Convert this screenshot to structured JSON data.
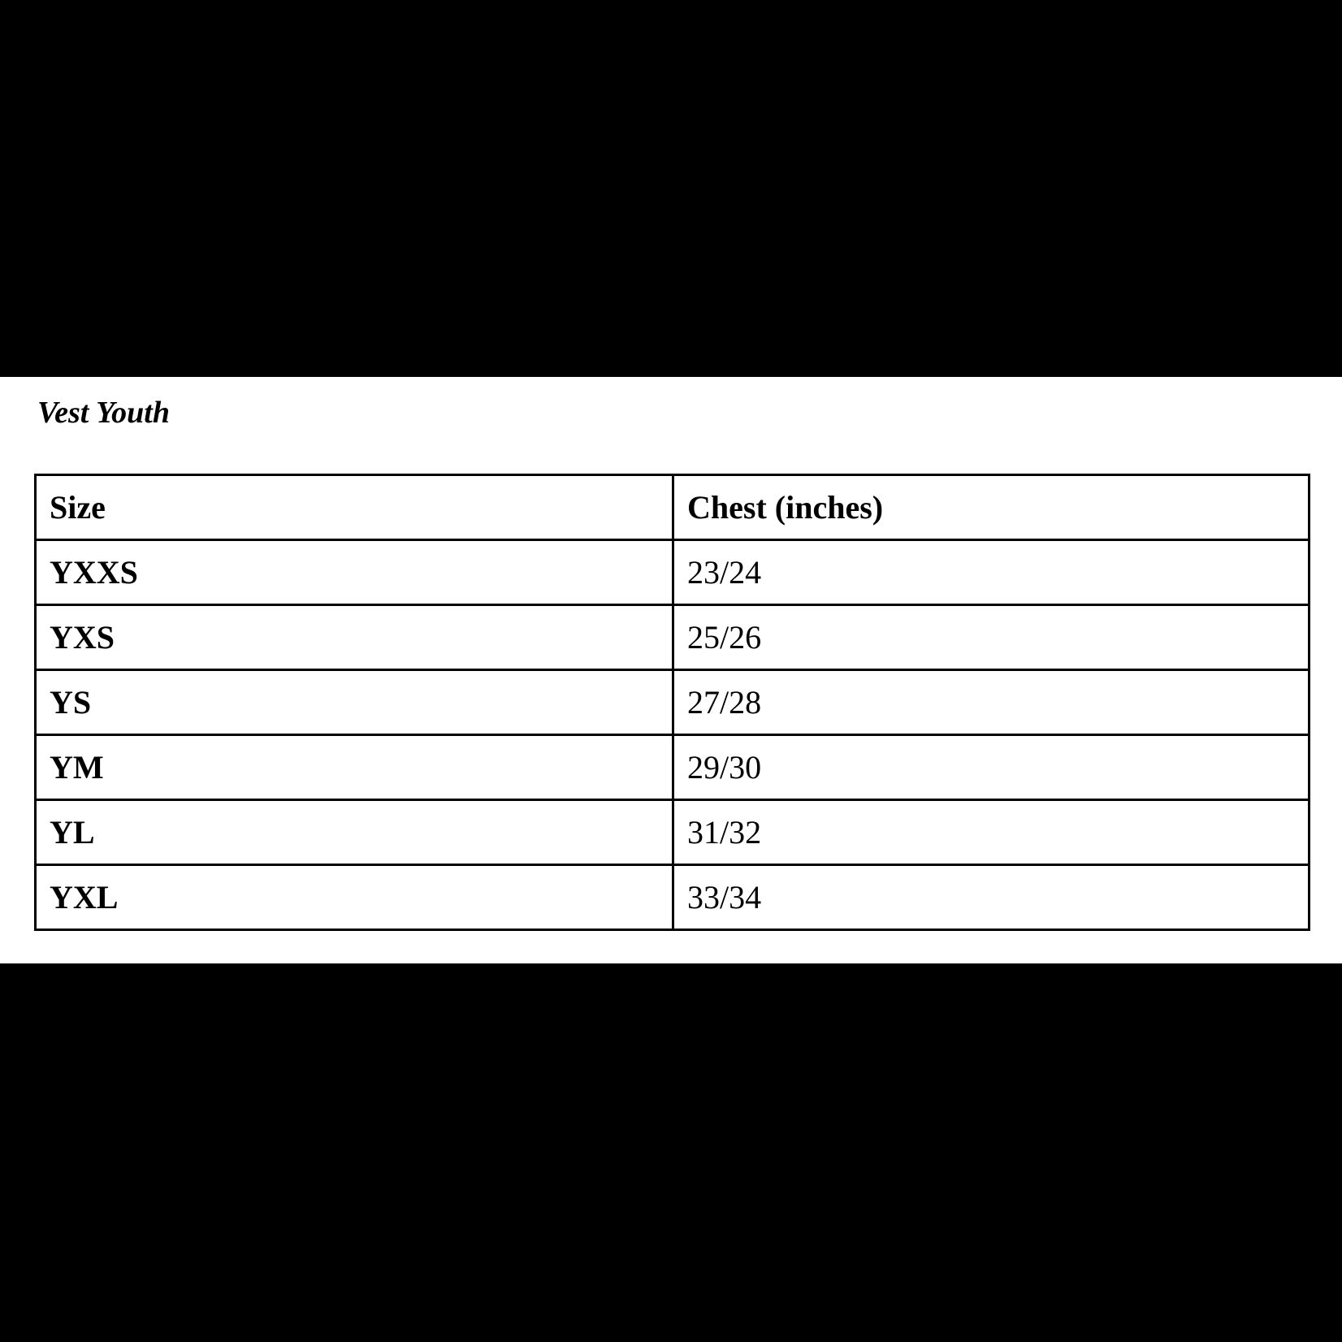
{
  "title": "Vest Youth",
  "table": {
    "headers": {
      "size": "Size",
      "chest": "Chest (inches)"
    },
    "rows": [
      {
        "size": "YXXS",
        "chest": "23/24"
      },
      {
        "size": "YXS",
        "chest": "25/26"
      },
      {
        "size": "YS",
        "chest": "27/28"
      },
      {
        "size": "YM",
        "chest": "29/30"
      },
      {
        "size": "YL",
        "chest": "31/32"
      },
      {
        "size": "YXL",
        "chest": "33/34"
      }
    ]
  },
  "colors": {
    "letterbox": "#000000",
    "page_background": "#ffffff",
    "text": "#000000",
    "table_border": "#000000"
  }
}
